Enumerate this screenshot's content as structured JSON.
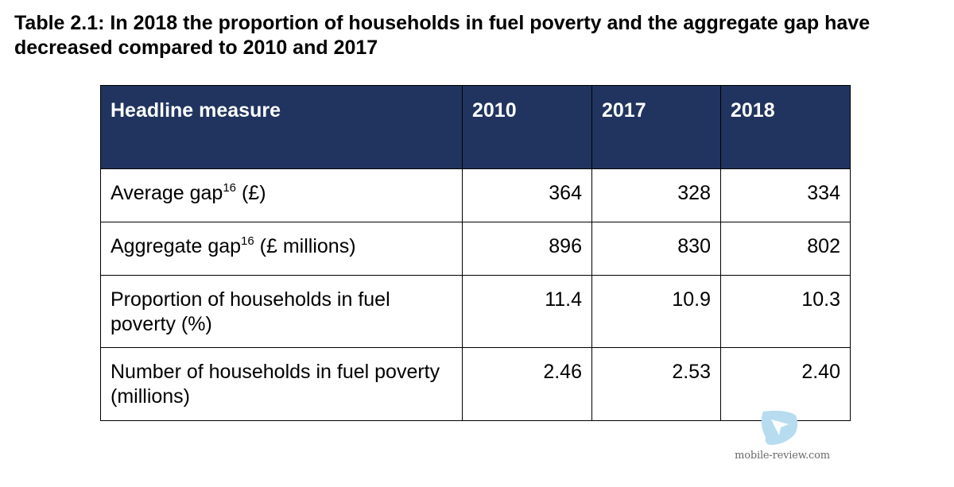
{
  "caption": "Table 2.1: In 2018 the proportion of households in fuel poverty and the aggregate gap have decreased compared to 2010 and 2017",
  "table": {
    "headers": [
      "Headline measure",
      "2010",
      "2017",
      "2018"
    ],
    "rows": [
      {
        "label": "Average gap",
        "footnote": "16",
        "label_suffix": " (£)",
        "values": [
          "364",
          "328",
          "334"
        ]
      },
      {
        "label": "Aggregate gap",
        "footnote": "16",
        "label_suffix": " (£ millions)",
        "values": [
          "896",
          "830",
          "802"
        ]
      },
      {
        "label": "Proportion of households in fuel poverty (%)",
        "footnote": "",
        "label_suffix": "",
        "values": [
          "11.4",
          "10.9",
          "10.3"
        ]
      },
      {
        "label": "Number of households in fuel poverty (millions)",
        "footnote": "",
        "label_suffix": "",
        "values": [
          "2.46",
          "2.53",
          "2.40"
        ]
      }
    ]
  },
  "watermark": {
    "text": "mobile-review.com",
    "colors": {
      "logo_fill": "#b7dcef",
      "logo_mark": "#ffffff",
      "text": "#6a6a6a"
    }
  },
  "colors": {
    "header_bg": "#21345f",
    "header_text": "#ffffff",
    "border": "#000000",
    "body_text": "#000000"
  }
}
